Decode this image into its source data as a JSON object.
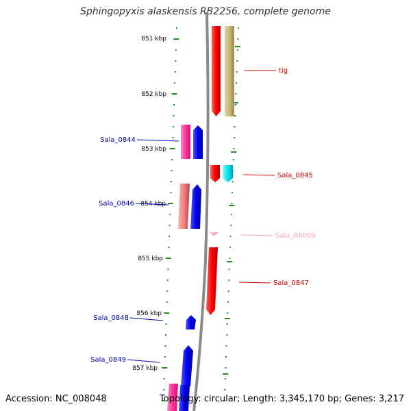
{
  "title": "Sphingopyxis alaskensis RB2256, complete genome",
  "footer": {
    "accession": "Accession: NC_008048",
    "summary": "Topology: circular; Length: 3,345,170 bp; Genes: 3,217"
  },
  "scale": {
    "ticks": [
      "851 kbp",
      "852 kbp",
      "853 kbp",
      "854 kbp",
      "855 kbp",
      "856 kbp",
      "857 kbp"
    ]
  },
  "colors": {
    "tick": "#228B22",
    "backbone": "#8a8a8a",
    "forward_label": "#cc0000",
    "reverse_label": "#0000aa",
    "rna_label": "#f4a0c0"
  },
  "genes": [
    {
      "name": "tig",
      "strand": "forward",
      "color": "#ff0000",
      "labeled": false
    },
    {
      "name": "tig",
      "strand": "forward",
      "color": "#c8b878",
      "labeled": true
    },
    {
      "name": "Sala_0844",
      "strand": "reverse",
      "color": "#ff3399",
      "labeled": false
    },
    {
      "name": "Sala_0844",
      "strand": "reverse",
      "color": "#0000ee",
      "labeled": true
    },
    {
      "name": "Sala_0845",
      "strand": "forward",
      "color": "#ff0000",
      "labeled": false
    },
    {
      "name": "Sala_0845",
      "strand": "forward",
      "color": "#00e5ee",
      "labeled": true
    },
    {
      "name": "Sala_0846",
      "strand": "reverse",
      "color": "#f08080",
      "labeled": false
    },
    {
      "name": "Sala_0846",
      "strand": "reverse",
      "color": "#0000ee",
      "labeled": true
    },
    {
      "name": "Sala_R0009",
      "strand": "forward",
      "color": "#ff99cc",
      "labeled": true
    },
    {
      "name": "Sala_0847",
      "strand": "forward",
      "color": "#ff0000",
      "labeled": true
    },
    {
      "name": "Sala_0848",
      "strand": "reverse",
      "color": "#0000ee",
      "labeled": true
    },
    {
      "name": "Sala_0849",
      "strand": "reverse",
      "color": "#0000ee",
      "labeled": true
    },
    {
      "name": "Sala_0849",
      "strand": "reverse",
      "color": "#ff3399",
      "labeled": false
    }
  ]
}
